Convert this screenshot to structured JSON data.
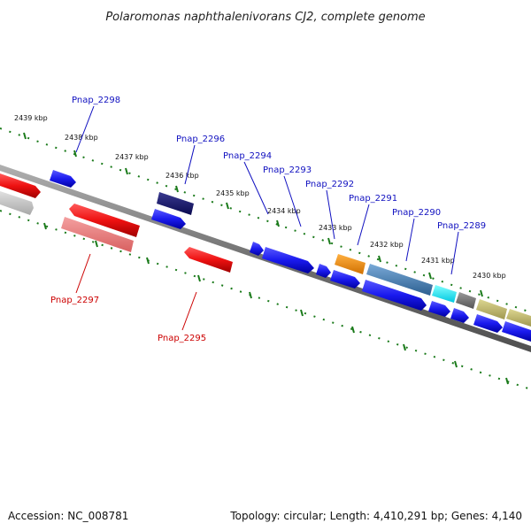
{
  "title": "Polaromonas naphthalenivorans CJ2, complete genome",
  "footer": {
    "accession": "Accession: NC_008781",
    "topology": "Topology: circular; Length: 4,410,291 bp; Genes: 4,140"
  },
  "kbp_ticks": [
    "2439 kbp",
    "2438 kbp",
    "2437 kbp",
    "2436 kbp",
    "2435 kbp",
    "2434 kbp",
    "2433 kbp",
    "2432 kbp",
    "2431 kbp",
    "2430 kbp"
  ],
  "gene_labels": {
    "forward": [
      "Pnap_2298",
      "Pnap_2296",
      "Pnap_2294",
      "Pnap_2293",
      "Pnap_2292",
      "Pnap_2291",
      "Pnap_2290",
      "Pnap_2289"
    ],
    "reverse": [
      "Pnap_2297",
      "Pnap_2295"
    ]
  },
  "colors": {
    "forward_gene": "#1a1aee",
    "reverse_gene": "#ee1111",
    "tick": "#1a7a1a",
    "backbone": "#808080"
  }
}
